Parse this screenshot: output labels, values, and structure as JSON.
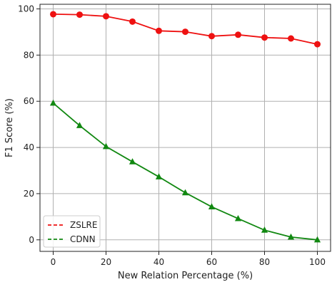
{
  "chart_data": {
    "type": "line",
    "title": "",
    "xlabel": "New Relation Percentage (%)",
    "ylabel": "F1 Score (%)",
    "xlim": [
      -5,
      105
    ],
    "ylim": [
      -5,
      102
    ],
    "xticks": [
      0,
      20,
      40,
      60,
      80,
      100
    ],
    "yticks": [
      0,
      20,
      40,
      60,
      80,
      100
    ],
    "grid": true,
    "legend_position": "lower-left",
    "x": [
      0,
      10,
      20,
      30,
      40,
      50,
      60,
      70,
      80,
      90,
      100
    ],
    "series": [
      {
        "name": "ZSLRE",
        "color": "#ee1111",
        "marker": "circle",
        "legend_line": "dashed",
        "values": [
          97.7,
          97.5,
          96.8,
          94.5,
          90.5,
          90.1,
          88.2,
          88.8,
          87.6,
          87.2,
          84.7
        ]
      },
      {
        "name": "CDNN",
        "color": "#118811",
        "marker": "triangle",
        "legend_line": "dashed",
        "values": [
          59.2,
          49.5,
          40.4,
          33.8,
          27.3,
          20.4,
          14.3,
          9.2,
          4.2,
          1.2,
          0.0
        ]
      }
    ]
  }
}
